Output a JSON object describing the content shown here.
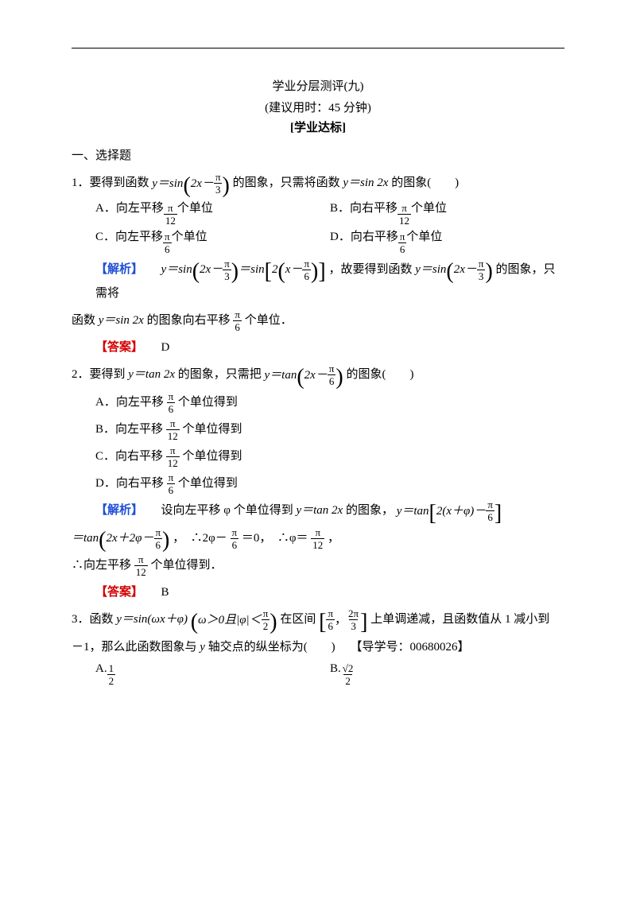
{
  "colors": {
    "text": "#000000",
    "bg": "#ffffff",
    "blue": "#1f4fd6",
    "red": "#d40000",
    "rule": "#000000"
  },
  "typography": {
    "body_fontsize_pt": 11,
    "title_fontsize_pt": 11,
    "math_font": "Times New Roman"
  },
  "header": {
    "title": "学业分层测评(九)",
    "time_note": "(建议用时：45 分钟)",
    "tag": "[学业达标]"
  },
  "section1_heading": "一、选择题",
  "q1": {
    "prefix": "1．要得到函数 ",
    "eq1_a": "y＝sin",
    "eq1_inner_a": "2x－",
    "eq1_frac_num": "π",
    "eq1_frac_den": "3",
    "mid": "的图象，只需将函数 ",
    "eq2": "y＝sin 2x",
    "suffix": " 的图象(　　)",
    "opts": {
      "A_pre": "A．向左平移",
      "A_frac_num": "π",
      "A_frac_den": "12",
      "A_post": "个单位",
      "B_pre": "B．向右平移",
      "B_frac_num": "π",
      "B_frac_den": "12",
      "B_post": "个单位",
      "C_pre": "C．向左平移",
      "C_frac_num": "π",
      "C_frac_den": "6",
      "C_post": "个单位",
      "D_pre": "D．向右平移",
      "D_frac_num": "π",
      "D_frac_den": "6",
      "D_post": "个单位"
    },
    "analysis_label": "【解析】",
    "analysis": {
      "p1_a": "y＝sin",
      "p1_inner1_a": "2x－",
      "p1_inner1_num": "π",
      "p1_inner1_den": "3",
      "p1_eq": "＝sin",
      "p1_inner2_pre": "2",
      "p1_inner2_a": "x－",
      "p1_inner2_num": "π",
      "p1_inner2_den": "6",
      "p1_b": "，故要得到函数 ",
      "p1_c": "y＝sin",
      "p1_inner3_a": "2x－",
      "p1_inner3_num": "π",
      "p1_inner3_den": "3",
      "p1_d": "的图象，只需将",
      "p2_a": "函数 ",
      "p2_b": "y＝sin 2x",
      "p2_c": " 的图象向右平移",
      "p2_num": "π",
      "p2_den": "6",
      "p2_d": "个单位．"
    },
    "answer_label": "【答案】",
    "answer": "D"
  },
  "q2": {
    "prefix": "2．要得到 ",
    "eq1": "y＝tan 2x",
    "mid": " 的图象，只需把 ",
    "eq2_a": "y＝tan",
    "eq2_inner_a": "2x－",
    "eq2_num": "π",
    "eq2_den": "6",
    "suffix": "的图象(　　)",
    "opts": {
      "A_pre": "A．向左平移",
      "A_num": "π",
      "A_den": "6",
      "A_post": "个单位得到",
      "B_pre": "B．向左平移",
      "B_num": "π",
      "B_den": "12",
      "B_post": "个单位得到",
      "C_pre": "C．向右平移",
      "C_num": "π",
      "C_den": "12",
      "C_post": "个单位得到",
      "D_pre": "D．向右平移",
      "D_num": "π",
      "D_den": "6",
      "D_post": "个单位得到"
    },
    "analysis_label": "【解析】",
    "analysis": {
      "p1_a": "设向左平移 φ 个单位得到 ",
      "p1_b": "y＝tan 2x",
      "p1_c": " 的图象，",
      "p1_d": "y＝tan",
      "p1_inner_a": "2(x＋φ)－",
      "p1_num": "π",
      "p1_den": "6",
      "p2_eq": "＝tan",
      "p2_inner_a": "2x＋2φ－",
      "p2_num": "π",
      "p2_den": "6",
      "p2_b": "，　∴2φ－",
      "p2_num2": "π",
      "p2_den2": "6",
      "p2_c": "＝0，　∴φ＝",
      "p2_num3": "π",
      "p2_den3": "12",
      "p2_d": "，",
      "p3_a": "∴向左平移",
      "p3_num": "π",
      "p3_den": "12",
      "p3_b": "个单位得到．"
    },
    "answer_label": "【答案】",
    "answer": "B"
  },
  "q3": {
    "prefix": "3．函数 ",
    "eq1": "y＝sin(ωx＋φ)",
    "cond_a": "ω＞0且|φ|＜",
    "cond_num": "π",
    "cond_den": "2",
    "mid1": "在区间",
    "int_a_num": "π",
    "int_a_den": "6",
    "int_sep": "，",
    "int_b_num": "2π",
    "int_b_den": "3",
    "mid2": "上单调递减，且函数值从 1 减小到",
    "line2_a": "－1，那么此函数图象与 ",
    "line2_b": "y",
    "line2_c": " 轴交点的纵坐标为(　　)　",
    "ref": "【导学号：00680026】",
    "opts": {
      "A_pre": "A.",
      "A_num": "1",
      "A_den": "2",
      "B_pre": "B.",
      "B_num": "√2",
      "B_den": "2"
    }
  }
}
